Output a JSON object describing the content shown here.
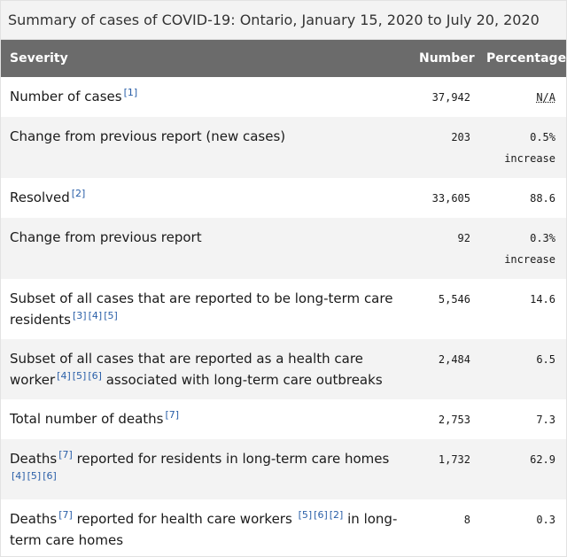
{
  "caption": "Summary of cases of COVID-19: Ontario, January 15, 2020 to July 20, 2020",
  "headers": {
    "severity": "Severity",
    "number": "Number",
    "percentage": "Percentage"
  },
  "rows": [
    {
      "label": "Number of cases",
      "refs": [
        "[1]"
      ],
      "number": "37,942",
      "pct": "N/A",
      "pct2": ""
    },
    {
      "label": "Change from previous report (new cases)",
      "refs": [],
      "number": "203",
      "pct": "0.5%",
      "pct2": "increase"
    },
    {
      "label": "Resolved",
      "refs": [
        "[2]"
      ],
      "number": "33,605",
      "pct": "88.6",
      "pct2": ""
    },
    {
      "label": "Change from previous report",
      "refs": [],
      "number": "92",
      "pct": "0.3%",
      "pct2": "increase"
    },
    {
      "label_a": "Subset of all cases that are reported to be long-term care residents",
      "refs": [
        "[3]",
        "[4]",
        "[5]"
      ],
      "number": "5,546",
      "pct": "14.6",
      "pct2": ""
    },
    {
      "label_a": "Subset of all cases that are reported as a health care worker",
      "refs": [
        "[4]",
        "[5]",
        "[6]"
      ],
      "label_b": "associated with long-term care outbreaks",
      "number": "2,484",
      "pct": "6.5",
      "pct2": ""
    },
    {
      "label": "Total number of deaths",
      "refs": [
        "[7]"
      ],
      "number": "2,753",
      "pct": "7.3",
      "pct2": ""
    },
    {
      "label_a": "Deaths",
      "refs_a": [
        "[7]"
      ],
      "label_b": "reported for residents in long-term care homes",
      "refs": [
        "[4]",
        "[5]",
        "[6]"
      ],
      "number": "1,732",
      "pct": "62.9",
      "pct2": ""
    },
    {
      "label_a": "Deaths",
      "refs_a": [
        "[7]"
      ],
      "label_b": "reported for health care workers",
      "refs": [
        "[5]",
        "[6]",
        "[2]"
      ],
      "label_c": "in long-term care homes",
      "number": "8",
      "pct": "0.3",
      "pct2": ""
    }
  ]
}
